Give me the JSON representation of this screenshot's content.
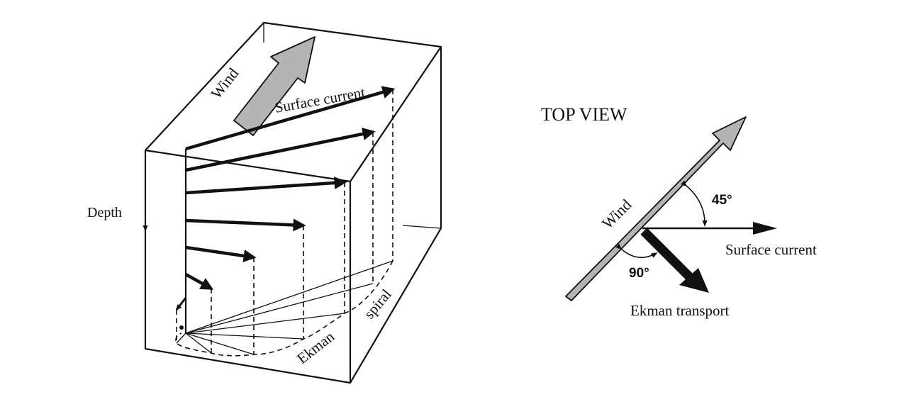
{
  "block_view": {
    "wind_label": "Wind",
    "surface_current_label": "Surface current",
    "depth_label": "Depth",
    "spiral_label_1": "Ekman",
    "spiral_label_2": "spiral"
  },
  "top_view": {
    "title": "TOP VIEW",
    "wind_label": "Wind",
    "angle_wind_current": "45°",
    "surface_current_label": "Surface current",
    "angle_wind_transport": "90°",
    "ekman_transport_label": "Ekman transport"
  },
  "colors": {
    "line": "#111111",
    "wind_arrow_fill": "#b4b4b4"
  }
}
